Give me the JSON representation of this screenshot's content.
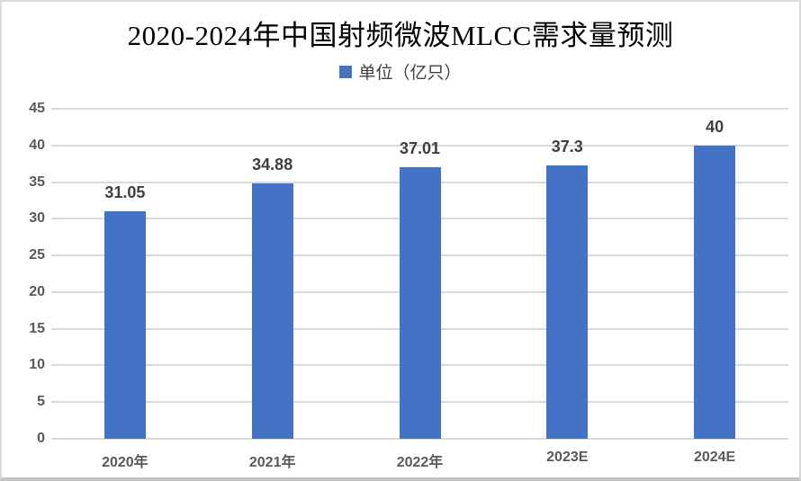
{
  "title": "2020-2024年中国射频微波MLCC需求量预测",
  "legend": {
    "label": "单位（亿只）",
    "marker_color": "#4472C4"
  },
  "chart_data": {
    "type": "bar",
    "title": "2020-2024年中国射频微波MLCC需求量预测",
    "series_name": "单位（亿只）",
    "categories": [
      "2020年",
      "2021年",
      "2022年",
      "2023E",
      "2024E"
    ],
    "values": [
      31.05,
      34.88,
      37.01,
      37.3,
      40
    ],
    "data_labels": [
      "31.05",
      "34.88",
      "37.01",
      "37.3",
      "40"
    ],
    "xlabel": "",
    "ylabel": "",
    "ylim": [
      0,
      45
    ],
    "yticks": [
      0,
      5,
      10,
      15,
      20,
      25,
      30,
      35,
      40,
      45
    ],
    "grid": true,
    "legend_position": "top-center",
    "bar_color": "#4472C4",
    "gridline_color": "#d9d9d9",
    "tick_label_color": "#595959",
    "data_label_color": "#3f3f3f"
  }
}
